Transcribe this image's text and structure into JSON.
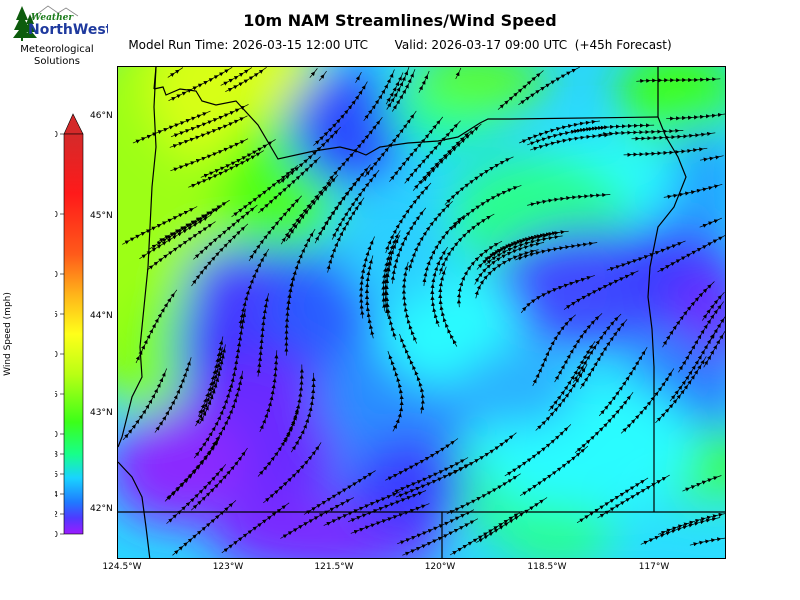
{
  "title": "10m NAM Streamlines/Wind Speed",
  "subtitle": {
    "model_run": "Model Run Time: 2026-03-15 12:00 UTC",
    "valid": "Valid: 2026-03-17 09:00 UTC  (+45h Forecast)"
  },
  "logo": {
    "word_top": "Weather",
    "word_main": "NorthWest",
    "line1": "Meteorological",
    "line2": "Solutions",
    "colors": {
      "green": "#1a7a1a",
      "blue": "#1f3a9e",
      "tree": "#0d5c0d"
    }
  },
  "map": {
    "lon_labels": [
      "124.5°W",
      "123°W",
      "121.5°W",
      "120°W",
      "118.5°W",
      "117°W"
    ],
    "lat_labels": [
      "46°N",
      "45°N",
      "44°N",
      "43°N",
      "42°N"
    ],
    "extent_lon": [
      -124.5,
      -116.0
    ],
    "extent_lat": [
      41.7,
      46.65
    ],
    "borders_color": "#000000",
    "streamline_color": "#000000"
  },
  "colorbar": {
    "label": "Wind Speed (mph)",
    "ticks": [
      "0",
      "2",
      "4",
      "6",
      "8",
      "10",
      "15",
      "20",
      "25",
      "30",
      "40",
      "50"
    ],
    "colors": [
      "#9b1bff",
      "#4f3aff",
      "#1f7bff",
      "#19d3ff",
      "#17ff8a",
      "#3cff19",
      "#baff14",
      "#ffff1a",
      "#ffb31a",
      "#ff5a1a",
      "#ff1a1a",
      "#d42a2a"
    ]
  }
}
